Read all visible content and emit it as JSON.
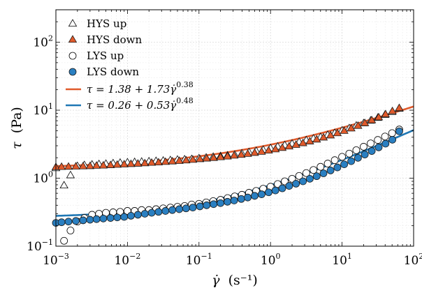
{
  "chart_data": {
    "type": "scatter",
    "title": "",
    "xlabel": {
      "symbol": "γ̇",
      "unit": "(s⁻¹)"
    },
    "ylabel": {
      "symbol": "τ",
      "unit": "(Pa)"
    },
    "xscale": "log",
    "yscale": "log",
    "xlim": [
      0.001,
      100
    ],
    "ylim": [
      0.1,
      300
    ],
    "grid": true,
    "legend_position": "top-left",
    "xticks": [
      {
        "value": 0.001,
        "base": "10",
        "exp": "−3"
      },
      {
        "value": 0.01,
        "base": "10",
        "exp": "−2"
      },
      {
        "value": 0.1,
        "base": "10",
        "exp": "−1"
      },
      {
        "value": 1,
        "base": "10",
        "exp": "0"
      },
      {
        "value": 10,
        "base": "10",
        "exp": "1"
      },
      {
        "value": 100,
        "base": "10",
        "exp": "2"
      }
    ],
    "yticks": [
      {
        "value": 0.1,
        "base": "10",
        "exp": "−1"
      },
      {
        "value": 1,
        "base": "10",
        "exp": "0"
      },
      {
        "value": 10,
        "base": "10",
        "exp": "1"
      },
      {
        "value": 100,
        "base": "10",
        "exp": "2"
      }
    ],
    "series": [
      {
        "name": "HYS up",
        "marker": "triangle",
        "filled": false,
        "color": "#000000",
        "x": [
          0.001,
          0.0013,
          0.0016,
          0.002,
          0.0025,
          0.0032,
          0.004,
          0.005,
          0.0063,
          0.0079,
          0.01,
          0.0126,
          0.0158,
          0.02,
          0.0251,
          0.0316,
          0.0398,
          0.05,
          0.063,
          0.079,
          0.1,
          0.126,
          0.158,
          0.2,
          0.251,
          0.316,
          0.398,
          0.5,
          0.63,
          0.79,
          1,
          1.26,
          1.58,
          2,
          2.51,
          3.16,
          3.98,
          5,
          6.3,
          7.9,
          10,
          12.6,
          15.8,
          20,
          25.1,
          31.6,
          39.8,
          50,
          63
        ],
        "y": [
          1.4,
          0.78,
          1.1,
          1.5,
          1.55,
          1.58,
          1.6,
          1.62,
          1.65,
          1.68,
          1.7,
          1.72,
          1.74,
          1.76,
          1.78,
          1.8,
          1.83,
          1.86,
          1.88,
          1.9,
          1.95,
          2.0,
          2.05,
          2.1,
          2.15,
          2.2,
          2.3,
          2.4,
          2.5,
          2.6,
          2.75,
          2.9,
          3.05,
          3.2,
          3.4,
          3.6,
          3.8,
          4.0,
          4.3,
          4.6,
          5.0,
          5.4,
          5.9,
          6.4,
          7.0,
          7.7,
          8.5,
          9.4,
          10.5
        ]
      },
      {
        "name": "HYS down",
        "marker": "triangle",
        "filled": true,
        "color": "#e05a2b",
        "x": [
          0.001,
          0.0012,
          0.0015,
          0.0019,
          0.0024,
          0.003,
          0.0037,
          0.0046,
          0.0058,
          0.0072,
          0.009,
          0.0112,
          0.014,
          0.0175,
          0.0218,
          0.0272,
          0.034,
          0.0424,
          0.053,
          0.066,
          0.082,
          0.103,
          0.128,
          0.16,
          0.2,
          0.25,
          0.31,
          0.39,
          0.48,
          0.6,
          0.75,
          0.94,
          1.17,
          1.46,
          1.82,
          2.27,
          2.84,
          3.54,
          4.42,
          5.5,
          6.9,
          8.6,
          10.7,
          13.4,
          16.7,
          20.8,
          26,
          32.5,
          40.5,
          50.5,
          63
        ],
        "y": [
          1.45,
          1.46,
          1.47,
          1.48,
          1.49,
          1.5,
          1.52,
          1.53,
          1.55,
          1.57,
          1.59,
          1.61,
          1.63,
          1.65,
          1.68,
          1.7,
          1.73,
          1.76,
          1.79,
          1.82,
          1.86,
          1.9,
          1.94,
          1.98,
          2.03,
          2.08,
          2.14,
          2.2,
          2.27,
          2.35,
          2.44,
          2.54,
          2.65,
          2.78,
          2.92,
          3.08,
          3.26,
          3.46,
          3.69,
          3.95,
          4.24,
          4.57,
          4.95,
          5.38,
          5.87,
          6.43,
          7.08,
          7.82,
          8.67,
          9.64,
          10.7
        ]
      },
      {
        "name": "LYS up",
        "marker": "circle",
        "filled": false,
        "color": "#000000",
        "x": [
          0.0013,
          0.0016,
          0.002,
          0.0025,
          0.0032,
          0.004,
          0.005,
          0.0063,
          0.0079,
          0.01,
          0.0126,
          0.0158,
          0.02,
          0.0251,
          0.0316,
          0.0398,
          0.05,
          0.063,
          0.079,
          0.1,
          0.126,
          0.158,
          0.2,
          0.251,
          0.316,
          0.398,
          0.5,
          0.63,
          0.79,
          1,
          1.26,
          1.58,
          2,
          2.51,
          3.16,
          3.98,
          5,
          6.3,
          7.9,
          10,
          12.6,
          15.8,
          20,
          25.1,
          31.6,
          39.8,
          50,
          63
        ],
        "y": [
          0.12,
          0.17,
          0.23,
          0.26,
          0.29,
          0.3,
          0.31,
          0.315,
          0.32,
          0.33,
          0.33,
          0.34,
          0.34,
          0.35,
          0.36,
          0.37,
          0.38,
          0.39,
          0.41,
          0.42,
          0.44,
          0.46,
          0.48,
          0.51,
          0.54,
          0.57,
          0.61,
          0.65,
          0.7,
          0.75,
          0.82,
          0.9,
          0.98,
          1.08,
          1.19,
          1.32,
          1.47,
          1.64,
          1.84,
          2.06,
          2.3,
          2.58,
          2.9,
          3.25,
          3.65,
          4.1,
          4.6,
          5.2
        ]
      },
      {
        "name": "LYS down",
        "marker": "circle",
        "filled": true,
        "color": "#2a7fc1",
        "x": [
          0.001,
          0.0012,
          0.0015,
          0.0019,
          0.0024,
          0.003,
          0.0037,
          0.0046,
          0.0058,
          0.0072,
          0.009,
          0.0112,
          0.014,
          0.0175,
          0.0218,
          0.0272,
          0.034,
          0.0424,
          0.053,
          0.066,
          0.082,
          0.103,
          0.128,
          0.16,
          0.2,
          0.25,
          0.31,
          0.39,
          0.48,
          0.6,
          0.75,
          0.94,
          1.17,
          1.46,
          1.82,
          2.27,
          2.84,
          3.54,
          4.42,
          5.5,
          6.9,
          8.6,
          10.7,
          13.4,
          16.7,
          20.8,
          26,
          32.5,
          40.5,
          50.5,
          63
        ],
        "y": [
          0.22,
          0.225,
          0.23,
          0.235,
          0.24,
          0.245,
          0.25,
          0.255,
          0.26,
          0.265,
          0.27,
          0.28,
          0.29,
          0.3,
          0.31,
          0.32,
          0.33,
          0.34,
          0.35,
          0.36,
          0.37,
          0.385,
          0.4,
          0.415,
          0.43,
          0.45,
          0.47,
          0.495,
          0.52,
          0.55,
          0.58,
          0.62,
          0.66,
          0.71,
          0.77,
          0.83,
          0.9,
          0.98,
          1.07,
          1.18,
          1.3,
          1.44,
          1.6,
          1.78,
          1.99,
          2.23,
          2.51,
          2.84,
          3.22,
          3.68,
          4.9
        ]
      }
    ],
    "fits": [
      {
        "name": "HYS fit",
        "color": "#e05a2b",
        "tau0": 1.38,
        "k": 1.73,
        "n": 0.38,
        "label_main": "τ = 1.38 + 1.73γ̇",
        "label_exp": "0.38"
      },
      {
        "name": "LYS fit",
        "color": "#1f77b4",
        "tau0": 0.26,
        "k": 0.53,
        "n": 0.48,
        "label_main": "τ = 0.26 + 0.53γ̇",
        "label_exp": "0.48"
      }
    ]
  }
}
